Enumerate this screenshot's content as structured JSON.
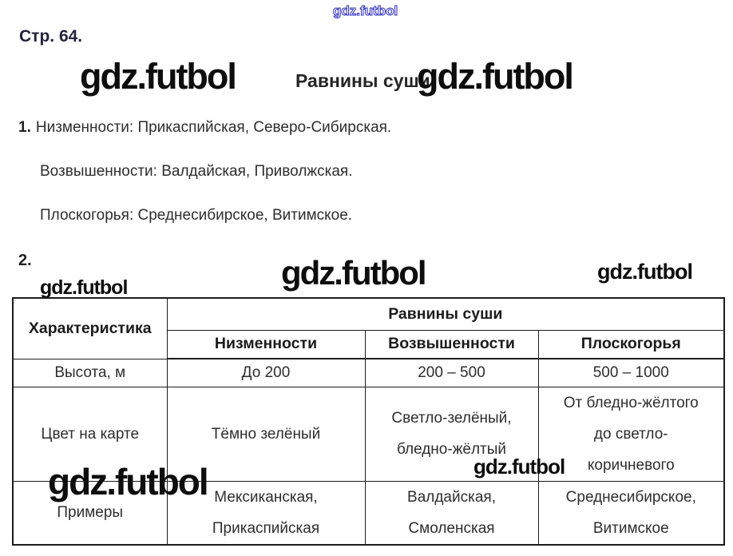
{
  "page": {
    "watermark": "gdz.futbol",
    "page_label": "Стр. 64.",
    "title": "Равнины суши"
  },
  "section1": {
    "number": "1.",
    "lines": [
      "Низменности: Прикаспийская, Северо-Сибирская.",
      "Возвышенности: Валдайская, Приволжская.",
      "Плоскогорья: Среднесибирское, Витимское."
    ]
  },
  "section2": {
    "number": "2."
  },
  "table": {
    "corner_header": "Характеристика",
    "group_header": "Равнины суши",
    "column_headers": [
      "Низменности",
      "Возвышенности",
      "Плоскогорья"
    ],
    "rows": [
      {
        "label": "Высота, м",
        "values": [
          "До 200",
          "200 – 500",
          "500 – 1000"
        ]
      },
      {
        "label": "Цвет на карте",
        "values": [
          "Тёмно зелёный",
          "Светло-зелёный,\nбледно-жёлтый",
          "От бледно-жёлтого\nдо светло-\nкоричневого"
        ]
      },
      {
        "label": "Примеры",
        "values": [
          "Мексиканская,\nПрикаспийская",
          "Валдайская,\nСмоленская",
          "Среднесибирское,\nВитимское"
        ]
      }
    ]
  }
}
